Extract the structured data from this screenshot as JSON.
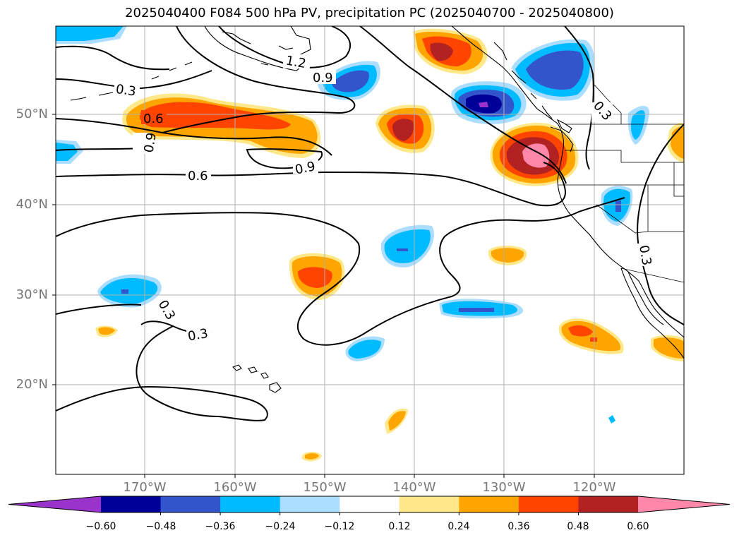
{
  "title": "2025040400 F084 500 hPa PV, precipitation PC (2025040700 - 2025040800)",
  "lat_labels": [
    "50°N",
    "40°N",
    "30°N",
    "20°N"
  ],
  "lon_labels": [
    "170°W",
    "160°W",
    "150°W",
    "140°W",
    "130°W",
    "120°W"
  ],
  "colorbar": {
    "ticks": [
      "−0.60",
      "−0.48",
      "−0.36",
      "−0.24",
      "−0.12",
      "0.12",
      "0.24",
      "0.36",
      "0.48",
      "0.60"
    ],
    "colors": [
      "#9933cc",
      "#000099",
      "#3355cc",
      "#00bbff",
      "#aaddff",
      "#ffffff",
      "#ffe88a",
      "#ffa500",
      "#ff4400",
      "#b22222",
      "#ff88aa"
    ]
  },
  "contour_labels": [
    "1.2",
    "0.9",
    "0.3",
    "0.6",
    "0.9",
    "0.6",
    "0.9",
    "0.3",
    "0.3",
    "0.3",
    "0.3"
  ]
}
